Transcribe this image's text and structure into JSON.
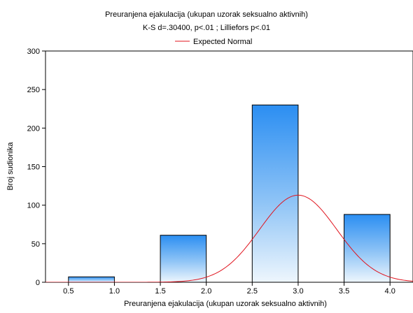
{
  "chart_data": {
    "type": "bar",
    "title": "Preuranjena ejakulacija (ukupan uzorak seksualno aktivnih)",
    "subtitle": "K-S d=.30400, p<.01 ; Lilliefors p<.01",
    "legend": {
      "label": "Expected Normal",
      "color": "#e0141e",
      "placement": "top-center"
    },
    "xlabel": "Preuranjena ejakulacija (ukupan uzorak seksualno aktivnih)",
    "ylabel": "Broj sudionika",
    "xlim": [
      0.25,
      4.25
    ],
    "ylim": [
      0,
      300
    ],
    "xticks": [
      0.5,
      1.0,
      1.5,
      2.0,
      2.5,
      3.0,
      3.5,
      4.0
    ],
    "xtick_labels": [
      "0.5",
      "1.0",
      "1.5",
      "2.0",
      "2.5",
      "3.0",
      "3.5",
      "4.0"
    ],
    "yticks": [
      0,
      50,
      100,
      150,
      200,
      250,
      300
    ],
    "ytick_labels": [
      "0",
      "50",
      "100",
      "150",
      "200",
      "250",
      "300"
    ],
    "grid": false,
    "bins": [
      {
        "from": 0.5,
        "to": 1.0,
        "value": 7
      },
      {
        "from": 1.5,
        "to": 2.0,
        "value": 61
      },
      {
        "from": 2.5,
        "to": 3.0,
        "value": 230
      },
      {
        "from": 3.5,
        "to": 4.0,
        "value": 88
      }
    ],
    "expected_normal": {
      "mean": 3.0,
      "peak": 113,
      "sd": 0.42
    }
  }
}
